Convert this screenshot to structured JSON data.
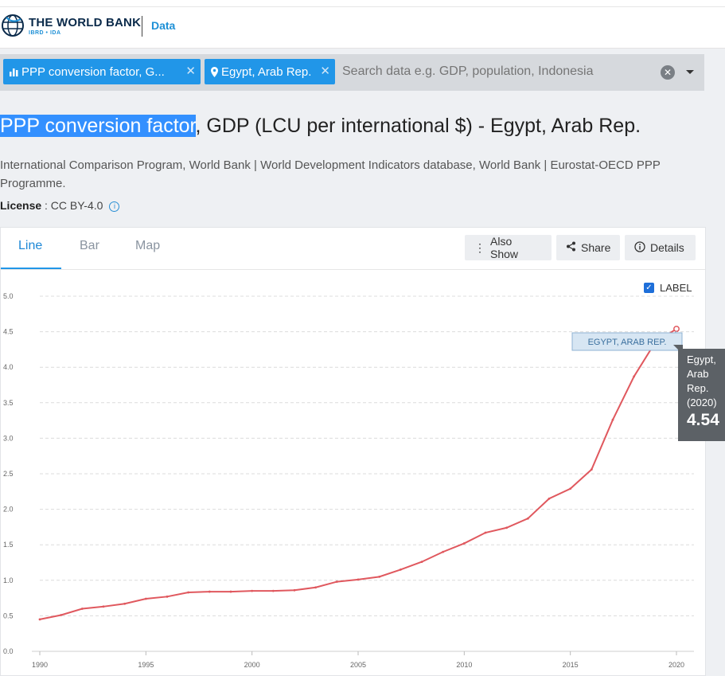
{
  "header": {
    "logo_title": "THE WORLD BANK",
    "logo_subtitle": "IBRD • IDA",
    "section_link": "Data"
  },
  "search": {
    "chips": [
      {
        "icon": "bar-chart-icon",
        "label": "PPP conversion factor, G..."
      },
      {
        "icon": "location-pin-icon",
        "label": "Egypt, Arab Rep."
      }
    ],
    "placeholder": "Search data e.g. GDP, population, Indonesia"
  },
  "page": {
    "title_highlight": "PPP conversion factor",
    "title_rest": ", GDP (LCU per international $) - Egypt, Arab Rep.",
    "source": "International Comparison Program, World Bank | World Development Indicators database, World Bank | Eurostat-OECD PPP Programme.",
    "license_label": "License",
    "license_value": " : CC BY-4.0"
  },
  "tabs": [
    {
      "label": "Line",
      "active": true
    },
    {
      "label": "Bar",
      "active": false
    },
    {
      "label": "Map",
      "active": false
    }
  ],
  "toolbar": {
    "also_show": "Also Show",
    "share": "Share",
    "details": "Details"
  },
  "label_toggle": {
    "label": "LABEL",
    "checked": true
  },
  "tooltip": {
    "lines": [
      "Egypt,",
      "Arab",
      "Rep.",
      "(2020)"
    ],
    "value": "4.54"
  },
  "colors": {
    "accent": "#2196e8",
    "series": "#e0585e",
    "highlight": "#3390ff"
  },
  "chart_data": {
    "type": "line",
    "x": [
      1990,
      1991,
      1992,
      1993,
      1994,
      1995,
      1996,
      1997,
      1998,
      1999,
      2000,
      2001,
      2002,
      2003,
      2004,
      2005,
      2006,
      2007,
      2008,
      2009,
      2010,
      2011,
      2012,
      2013,
      2014,
      2015,
      2016,
      2017,
      2018,
      2019,
      2020
    ],
    "series": [
      {
        "name": "EGYPT, ARAB REP.",
        "values": [
          0.45,
          0.51,
          0.6,
          0.63,
          0.67,
          0.74,
          0.77,
          0.83,
          0.84,
          0.84,
          0.85,
          0.85,
          0.86,
          0.9,
          0.98,
          1.01,
          1.05,
          1.15,
          1.26,
          1.4,
          1.52,
          1.67,
          1.74,
          1.87,
          2.15,
          2.29,
          2.56,
          3.26,
          3.87,
          4.35,
          4.54
        ]
      }
    ],
    "xticks": [
      1990,
      1995,
      2000,
      2005,
      2010,
      2015,
      2020
    ],
    "yticks": [
      "0.0",
      "0.5",
      "1.0",
      "1.5",
      "2.0",
      "2.5",
      "3.0",
      "3.5",
      "4.0",
      "4.5",
      "5.0"
    ],
    "ylim": [
      0,
      5.0
    ],
    "xlim": [
      1990,
      2020
    ],
    "grid": true,
    "xlabel": "",
    "ylabel": ""
  }
}
